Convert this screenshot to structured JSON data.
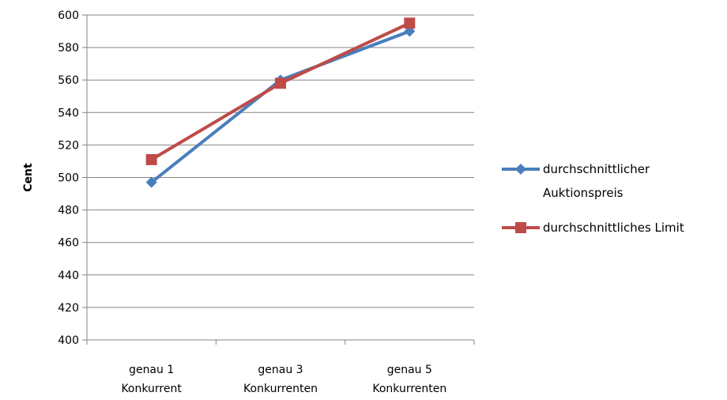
{
  "chart_data": {
    "type": "line",
    "title": "",
    "xlabel": "",
    "ylabel": "Cent",
    "ylim": [
      400,
      600
    ],
    "ytick_step": 20,
    "yticks": [
      "400",
      "420",
      "440",
      "460",
      "480",
      "500",
      "520",
      "540",
      "560",
      "580",
      "600"
    ],
    "grid": true,
    "legend_position": "right",
    "categories": [
      [
        "genau 1",
        "Konkurrent"
      ],
      [
        "genau 3",
        "Konkurrenten"
      ],
      [
        "genau 5",
        "Konkurrenten"
      ]
    ],
    "series": [
      {
        "name": [
          "durchschnittlicher",
          "Auktionspreis"
        ],
        "values": [
          497,
          560,
          590
        ],
        "color": "#4a7ebb",
        "marker": "diamond"
      },
      {
        "name": [
          "durchschnittliches Limit"
        ],
        "values": [
          511,
          558,
          595
        ],
        "color": "#be4b48",
        "marker": "square"
      }
    ]
  }
}
